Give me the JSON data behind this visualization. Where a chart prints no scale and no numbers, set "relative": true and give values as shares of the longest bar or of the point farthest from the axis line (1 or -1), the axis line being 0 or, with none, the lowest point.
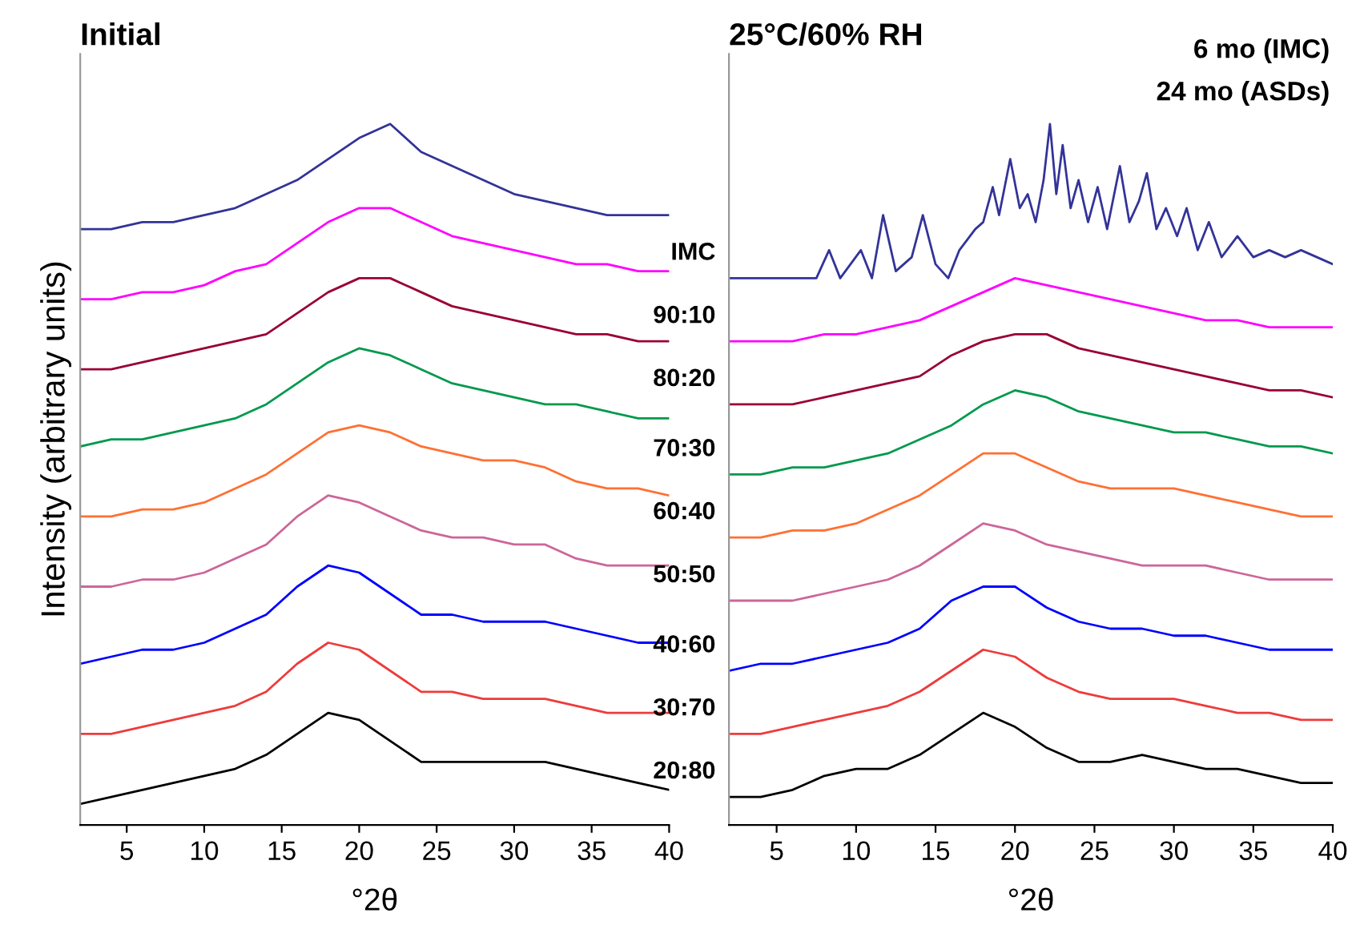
{
  "chart_data": [
    {
      "type": "line",
      "title": "Initial",
      "xlabel": "°2θ",
      "ylabel": "Intensity (arbitrary units)",
      "relative": true,
      "xlim": [
        2,
        40
      ],
      "xticks": [
        5,
        10,
        15,
        20,
        25,
        30,
        35,
        40
      ],
      "tick_labels": "x",
      "grid": false,
      "legend": false,
      "marker": "none",
      "line_style": "solid",
      "x": [
        2,
        4,
        6,
        8,
        10,
        12,
        14,
        16,
        18,
        20,
        22,
        24,
        26,
        28,
        30,
        32,
        34,
        36,
        38,
        40
      ],
      "series": [
        {
          "color": "#333399",
          "values": [
            0.85,
            0.85,
            0.86,
            0.86,
            0.87,
            0.88,
            0.9,
            0.92,
            0.95,
            0.98,
            1.0,
            0.96,
            0.94,
            0.92,
            0.9,
            0.89,
            0.88,
            0.87,
            0.87,
            0.87
          ]
        },
        {
          "color": "#ff00ff",
          "values": [
            0.75,
            0.75,
            0.76,
            0.76,
            0.77,
            0.79,
            0.8,
            0.83,
            0.86,
            0.88,
            0.88,
            0.86,
            0.84,
            0.83,
            0.82,
            0.81,
            0.8,
            0.8,
            0.79,
            0.79
          ]
        },
        {
          "color": "#990033",
          "values": [
            0.65,
            0.65,
            0.66,
            0.67,
            0.68,
            0.69,
            0.7,
            0.73,
            0.76,
            0.78,
            0.78,
            0.76,
            0.74,
            0.73,
            0.72,
            0.71,
            0.7,
            0.7,
            0.69,
            0.69
          ]
        },
        {
          "color": "#00994c",
          "values": [
            0.54,
            0.55,
            0.55,
            0.56,
            0.57,
            0.58,
            0.6,
            0.63,
            0.66,
            0.68,
            0.67,
            0.65,
            0.63,
            0.62,
            0.61,
            0.6,
            0.6,
            0.59,
            0.58,
            0.58
          ]
        },
        {
          "color": "#ff7033",
          "values": [
            0.44,
            0.44,
            0.45,
            0.45,
            0.46,
            0.48,
            0.5,
            0.53,
            0.56,
            0.57,
            0.56,
            0.54,
            0.53,
            0.52,
            0.52,
            0.51,
            0.49,
            0.48,
            0.48,
            0.47
          ]
        },
        {
          "color": "#cc6699",
          "values": [
            0.34,
            0.34,
            0.35,
            0.35,
            0.36,
            0.38,
            0.4,
            0.44,
            0.47,
            0.46,
            0.44,
            0.42,
            0.41,
            0.41,
            0.4,
            0.4,
            0.38,
            0.37,
            0.37,
            0.37
          ]
        },
        {
          "color": "#0000ff",
          "values": [
            0.23,
            0.24,
            0.25,
            0.25,
            0.26,
            0.28,
            0.3,
            0.34,
            0.37,
            0.36,
            0.33,
            0.3,
            0.3,
            0.29,
            0.29,
            0.29,
            0.28,
            0.27,
            0.26,
            0.26
          ]
        },
        {
          "color": "#ee3b3b",
          "values": [
            0.13,
            0.13,
            0.14,
            0.15,
            0.16,
            0.17,
            0.19,
            0.23,
            0.26,
            0.25,
            0.22,
            0.19,
            0.19,
            0.18,
            0.18,
            0.18,
            0.17,
            0.16,
            0.16,
            0.16
          ]
        },
        {
          "color": "#000000",
          "values": [
            0.03,
            0.04,
            0.05,
            0.06,
            0.07,
            0.08,
            0.1,
            0.13,
            0.16,
            0.15,
            0.12,
            0.09,
            0.09,
            0.09,
            0.09,
            0.09,
            0.08,
            0.07,
            0.06,
            0.05
          ]
        }
      ]
    },
    {
      "type": "line",
      "title": "25°C/60% RH",
      "xlabel": "°2θ",
      "relative": true,
      "xlim": [
        2,
        40
      ],
      "xticks": [
        5,
        10,
        15,
        20,
        25,
        30,
        35,
        40
      ],
      "tick_labels": "x",
      "grid": false,
      "legend": false,
      "marker": "none",
      "line_style": "solid",
      "annotations": [
        "6 mo (IMC)",
        "24 mo (ASDs)"
      ],
      "x": [
        2,
        4,
        6,
        8,
        10,
        12,
        14,
        16,
        18,
        20,
        22,
        24,
        26,
        28,
        30,
        32,
        34,
        36,
        38,
        40
      ],
      "series": [
        {
          "name": "IMC",
          "color": "#333399",
          "x": [
            2,
            4,
            6,
            7.5,
            8.3,
            9,
            10.3,
            11,
            11.7,
            12.5,
            13.5,
            14.2,
            15,
            15.8,
            16.5,
            17.5,
            18,
            18.6,
            19,
            19.7,
            20.3,
            20.8,
            21.3,
            21.8,
            22.2,
            22.6,
            23,
            23.5,
            24,
            24.6,
            25.2,
            25.8,
            26.6,
            27.2,
            27.8,
            28.3,
            28.9,
            29.5,
            30.2,
            30.8,
            31.5,
            32.2,
            33,
            34,
            35,
            36,
            37,
            38,
            39,
            40
          ],
          "values": [
            0.78,
            0.78,
            0.78,
            0.78,
            0.82,
            0.78,
            0.82,
            0.78,
            0.87,
            0.79,
            0.81,
            0.87,
            0.8,
            0.78,
            0.82,
            0.85,
            0.86,
            0.91,
            0.87,
            0.95,
            0.88,
            0.9,
            0.86,
            0.92,
            1.0,
            0.9,
            0.97,
            0.88,
            0.92,
            0.86,
            0.91,
            0.85,
            0.94,
            0.86,
            0.89,
            0.93,
            0.85,
            0.88,
            0.84,
            0.88,
            0.82,
            0.86,
            0.81,
            0.84,
            0.81,
            0.82,
            0.81,
            0.82,
            0.81,
            0.8
          ]
        },
        {
          "name": "90:10",
          "color": "#ff00ff",
          "values": [
            0.69,
            0.69,
            0.69,
            0.7,
            0.7,
            0.71,
            0.72,
            0.74,
            0.76,
            0.78,
            0.77,
            0.76,
            0.75,
            0.74,
            0.73,
            0.72,
            0.72,
            0.71,
            0.71,
            0.71
          ]
        },
        {
          "name": "80:20",
          "color": "#990033",
          "values": [
            0.6,
            0.6,
            0.6,
            0.61,
            0.62,
            0.63,
            0.64,
            0.67,
            0.69,
            0.7,
            0.7,
            0.68,
            0.67,
            0.66,
            0.65,
            0.64,
            0.63,
            0.62,
            0.62,
            0.61
          ]
        },
        {
          "name": "70:30",
          "color": "#00994c",
          "values": [
            0.5,
            0.5,
            0.51,
            0.51,
            0.52,
            0.53,
            0.55,
            0.57,
            0.6,
            0.62,
            0.61,
            0.59,
            0.58,
            0.57,
            0.56,
            0.56,
            0.55,
            0.54,
            0.54,
            0.53
          ]
        },
        {
          "name": "60:40",
          "color": "#ff7033",
          "values": [
            0.41,
            0.41,
            0.42,
            0.42,
            0.43,
            0.45,
            0.47,
            0.5,
            0.53,
            0.53,
            0.51,
            0.49,
            0.48,
            0.48,
            0.48,
            0.47,
            0.46,
            0.45,
            0.44,
            0.44
          ]
        },
        {
          "name": "50:50",
          "color": "#cc6699",
          "values": [
            0.32,
            0.32,
            0.32,
            0.33,
            0.34,
            0.35,
            0.37,
            0.4,
            0.43,
            0.42,
            0.4,
            0.39,
            0.38,
            0.37,
            0.37,
            0.37,
            0.36,
            0.35,
            0.35,
            0.35
          ]
        },
        {
          "name": "40:60",
          "color": "#0000ff",
          "values": [
            0.22,
            0.23,
            0.23,
            0.24,
            0.25,
            0.26,
            0.28,
            0.32,
            0.34,
            0.34,
            0.31,
            0.29,
            0.28,
            0.28,
            0.27,
            0.27,
            0.26,
            0.25,
            0.25,
            0.25
          ]
        },
        {
          "name": "30:70",
          "color": "#ee3b3b",
          "values": [
            0.13,
            0.13,
            0.14,
            0.15,
            0.16,
            0.17,
            0.19,
            0.22,
            0.25,
            0.24,
            0.21,
            0.19,
            0.18,
            0.18,
            0.18,
            0.17,
            0.16,
            0.16,
            0.15,
            0.15
          ]
        },
        {
          "name": "20:80",
          "color": "#000000",
          "values": [
            0.04,
            0.04,
            0.05,
            0.07,
            0.08,
            0.08,
            0.1,
            0.13,
            0.16,
            0.14,
            0.11,
            0.09,
            0.09,
            0.1,
            0.09,
            0.08,
            0.08,
            0.07,
            0.06,
            0.06
          ]
        }
      ]
    }
  ]
}
